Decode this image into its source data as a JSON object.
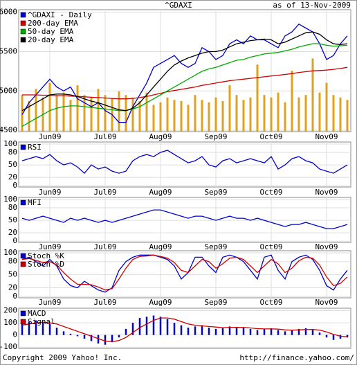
{
  "header": {
    "title": "^GDAXI",
    "date": "as of 13-Nov-2009"
  },
  "footer": {
    "copyright": "Copyright 2009 Yahoo! Inc.",
    "url": "http://finance.yahoo.com/"
  },
  "chart_data": [
    {
      "type": "line",
      "categories": [
        null,
        null,
        null,
        null,
        "Jun09",
        null,
        null,
        null,
        null,
        null,
        null,
        null,
        "Jul09",
        null,
        null,
        null,
        null,
        null,
        null,
        null,
        "Aug09",
        null,
        null,
        null,
        null,
        null,
        null,
        null,
        "Sep09",
        null,
        null,
        null,
        null,
        null,
        null,
        null,
        "Oct09",
        null,
        null,
        null,
        null,
        null,
        null,
        null,
        "Nov09",
        null,
        null,
        null
      ],
      "ylim": [
        4483,
        6033
      ],
      "yticks": [
        4500,
        5000,
        5500,
        6000
      ],
      "y2lim": [
        0,
        100
      ],
      "series": [
        {
          "name": "^GDAXI - Daily",
          "color": "#0000cc",
          "values": [
            4700,
            4850,
            4950,
            5050,
            5150,
            5050,
            5000,
            5050,
            4900,
            4850,
            4800,
            4850,
            4750,
            4700,
            4600,
            4600,
            4800,
            4950,
            5100,
            5300,
            5350,
            5400,
            5450,
            5350,
            5300,
            5350,
            5550,
            5500,
            5400,
            5450,
            5600,
            5650,
            5600,
            5700,
            5650,
            5650,
            5600,
            5550,
            5700,
            5750,
            5850,
            5800,
            5750,
            5600,
            5400,
            5450,
            5600,
            5700
          ]
        },
        {
          "name": "200-day EMA",
          "color": "#cc0000",
          "values": [
            4950,
            4950,
            4950,
            4945,
            4945,
            4940,
            4940,
            4935,
            4930,
            4925,
            4920,
            4915,
            4910,
            4905,
            4900,
            4900,
            4905,
            4915,
            4930,
            4950,
            4970,
            4990,
            5005,
            5020,
            5035,
            5050,
            5070,
            5085,
            5100,
            5115,
            5130,
            5140,
            5150,
            5160,
            5170,
            5180,
            5190,
            5200,
            5210,
            5220,
            5235,
            5245,
            5255,
            5260,
            5265,
            5275,
            5285,
            5300
          ]
        },
        {
          "name": "50-day EMA",
          "color": "#00aa00",
          "values": [
            4550,
            4600,
            4650,
            4700,
            4750,
            4780,
            4800,
            4810,
            4810,
            4800,
            4790,
            4780,
            4770,
            4760,
            4750,
            4750,
            4770,
            4800,
            4850,
            4900,
            4950,
            5000,
            5050,
            5100,
            5150,
            5200,
            5250,
            5280,
            5300,
            5330,
            5360,
            5390,
            5400,
            5430,
            5450,
            5470,
            5480,
            5490,
            5510,
            5530,
            5560,
            5580,
            5600,
            5600,
            5580,
            5570,
            5575,
            5580
          ]
        },
        {
          "name": "20-day EMA",
          "color": "#000000",
          "values": [
            4750,
            4800,
            4850,
            4900,
            4950,
            4960,
            4960,
            4950,
            4930,
            4900,
            4870,
            4850,
            4820,
            4790,
            4760,
            4750,
            4780,
            4850,
            4950,
            5050,
            5150,
            5250,
            5330,
            5380,
            5420,
            5450,
            5480,
            5500,
            5500,
            5520,
            5560,
            5600,
            5620,
            5640,
            5650,
            5660,
            5650,
            5600,
            5620,
            5660,
            5700,
            5740,
            5750,
            5720,
            5650,
            5600,
            5590,
            5600
          ]
        },
        {
          "name": null,
          "type": "bar",
          "axis": "y2",
          "color": "#e0a020",
          "values": [
            30,
            25,
            35,
            28,
            40,
            30,
            32,
            26,
            38,
            30,
            28,
            35,
            30,
            27,
            33,
            30,
            28,
            25,
            32,
            22,
            24,
            28,
            26,
            25,
            22,
            30,
            26,
            24,
            28,
            25,
            38,
            30,
            26,
            28,
            55,
            30,
            28,
            32,
            24,
            50,
            28,
            30,
            60,
            32,
            40,
            30,
            28,
            26
          ]
        }
      ]
    },
    {
      "type": "line",
      "categories": [
        null,
        null,
        null,
        null,
        "Jun09",
        null,
        null,
        null,
        null,
        null,
        null,
        null,
        "Jul09",
        null,
        null,
        null,
        null,
        null,
        null,
        null,
        "Aug09",
        null,
        null,
        null,
        null,
        null,
        null,
        null,
        "Sep09",
        null,
        null,
        null,
        null,
        null,
        null,
        null,
        "Oct09",
        null,
        null,
        null,
        null,
        null,
        null,
        null,
        "Nov09",
        null,
        null,
        null
      ],
      "ylim": [
        -3,
        105
      ],
      "yticks": [
        0,
        20,
        50,
        80,
        100
      ],
      "series": [
        {
          "name": "RSI",
          "color": "#0000cc",
          "values": [
            60,
            65,
            70,
            65,
            75,
            60,
            50,
            55,
            45,
            30,
            50,
            40,
            45,
            35,
            30,
            35,
            60,
            70,
            75,
            70,
            80,
            85,
            75,
            65,
            55,
            60,
            70,
            50,
            45,
            60,
            65,
            55,
            60,
            65,
            60,
            55,
            70,
            40,
            50,
            65,
            70,
            60,
            55,
            40,
            35,
            30,
            40,
            50
          ]
        }
      ]
    },
    {
      "type": "line",
      "categories": [
        null,
        null,
        null,
        null,
        "Jun09",
        null,
        null,
        null,
        null,
        null,
        null,
        null,
        "Jul09",
        null,
        null,
        null,
        null,
        null,
        null,
        null,
        "Aug09",
        null,
        null,
        null,
        null,
        null,
        null,
        null,
        "Sep09",
        null,
        null,
        null,
        null,
        null,
        null,
        null,
        "Oct09",
        null,
        null,
        null,
        null,
        null,
        null,
        null,
        "Nov09",
        null,
        null,
        null
      ],
      "ylim": [
        -3,
        105
      ],
      "yticks": [
        0,
        20,
        50,
        80,
        100
      ],
      "series": [
        {
          "name": "MFI",
          "color": "#0000cc",
          "values": [
            55,
            50,
            55,
            60,
            55,
            50,
            45,
            55,
            50,
            55,
            50,
            45,
            50,
            45,
            50,
            55,
            60,
            65,
            70,
            75,
            75,
            70,
            65,
            60,
            55,
            60,
            60,
            55,
            50,
            55,
            60,
            55,
            55,
            50,
            55,
            50,
            45,
            40,
            35,
            40,
            40,
            45,
            40,
            35,
            30,
            30,
            35,
            40
          ]
        }
      ]
    },
    {
      "type": "line",
      "categories": [
        null,
        null,
        null,
        null,
        "Jun09",
        null,
        null,
        null,
        null,
        null,
        null,
        null,
        "Jul09",
        null,
        null,
        null,
        null,
        null,
        null,
        null,
        "Aug09",
        null,
        null,
        null,
        null,
        null,
        null,
        null,
        "Sep09",
        null,
        null,
        null,
        null,
        null,
        null,
        null,
        "Oct09",
        null,
        null,
        null,
        null,
        null,
        null,
        null,
        "Nov09",
        null,
        null,
        null
      ],
      "ylim": [
        -3,
        105
      ],
      "yticks": [
        0,
        20,
        50,
        80,
        100
      ],
      "series": [
        {
          "name": "Stoch %K",
          "color": "#0000cc",
          "values": [
            85,
            90,
            80,
            70,
            85,
            70,
            40,
            25,
            20,
            35,
            25,
            15,
            10,
            20,
            60,
            80,
            90,
            95,
            95,
            95,
            90,
            85,
            70,
            40,
            55,
            90,
            90,
            70,
            55,
            90,
            95,
            90,
            80,
            60,
            40,
            90,
            95,
            60,
            40,
            80,
            90,
            95,
            85,
            60,
            25,
            15,
            40,
            60
          ]
        },
        {
          "name": "Stoch %D",
          "color": "#cc0000",
          "values": [
            85,
            87,
            83,
            78,
            80,
            72,
            55,
            40,
            28,
            28,
            27,
            22,
            15,
            18,
            40,
            65,
            85,
            92,
            93,
            95,
            92,
            88,
            78,
            60,
            55,
            70,
            85,
            80,
            65,
            75,
            88,
            90,
            85,
            70,
            55,
            70,
            85,
            75,
            55,
            65,
            82,
            90,
            88,
            72,
            45,
            25,
            30,
            45
          ]
        }
      ]
    },
    {
      "type": "line",
      "ylim": [
        -110,
        220
      ],
      "yticks": [
        -100,
        0,
        100,
        200
      ],
      "series": [
        {
          "name": "MACD",
          "type": "bar",
          "color": "#0000cc",
          "values": [
            100,
            110,
            120,
            105,
            90,
            60,
            30,
            10,
            -10,
            -30,
            -50,
            -70,
            -80,
            -60,
            -20,
            50,
            100,
            140,
            150,
            160,
            150,
            130,
            100,
            80,
            60,
            70,
            80,
            60,
            50,
            60,
            70,
            65,
            60,
            50,
            40,
            50,
            55,
            40,
            30,
            40,
            50,
            55,
            45,
            20,
            -20,
            -40,
            -30,
            -20
          ]
        },
        {
          "name": "Signal",
          "color": "#cc0000",
          "values": [
            80,
            90,
            100,
            105,
            100,
            90,
            70,
            50,
            30,
            10,
            -10,
            -30,
            -50,
            -55,
            -45,
            -20,
            20,
            60,
            90,
            120,
            140,
            140,
            130,
            110,
            90,
            80,
            75,
            70,
            65,
            60,
            62,
            63,
            62,
            58,
            52,
            50,
            50,
            48,
            42,
            40,
            42,
            45,
            46,
            40,
            25,
            5,
            -10,
            -15
          ]
        }
      ]
    }
  ]
}
